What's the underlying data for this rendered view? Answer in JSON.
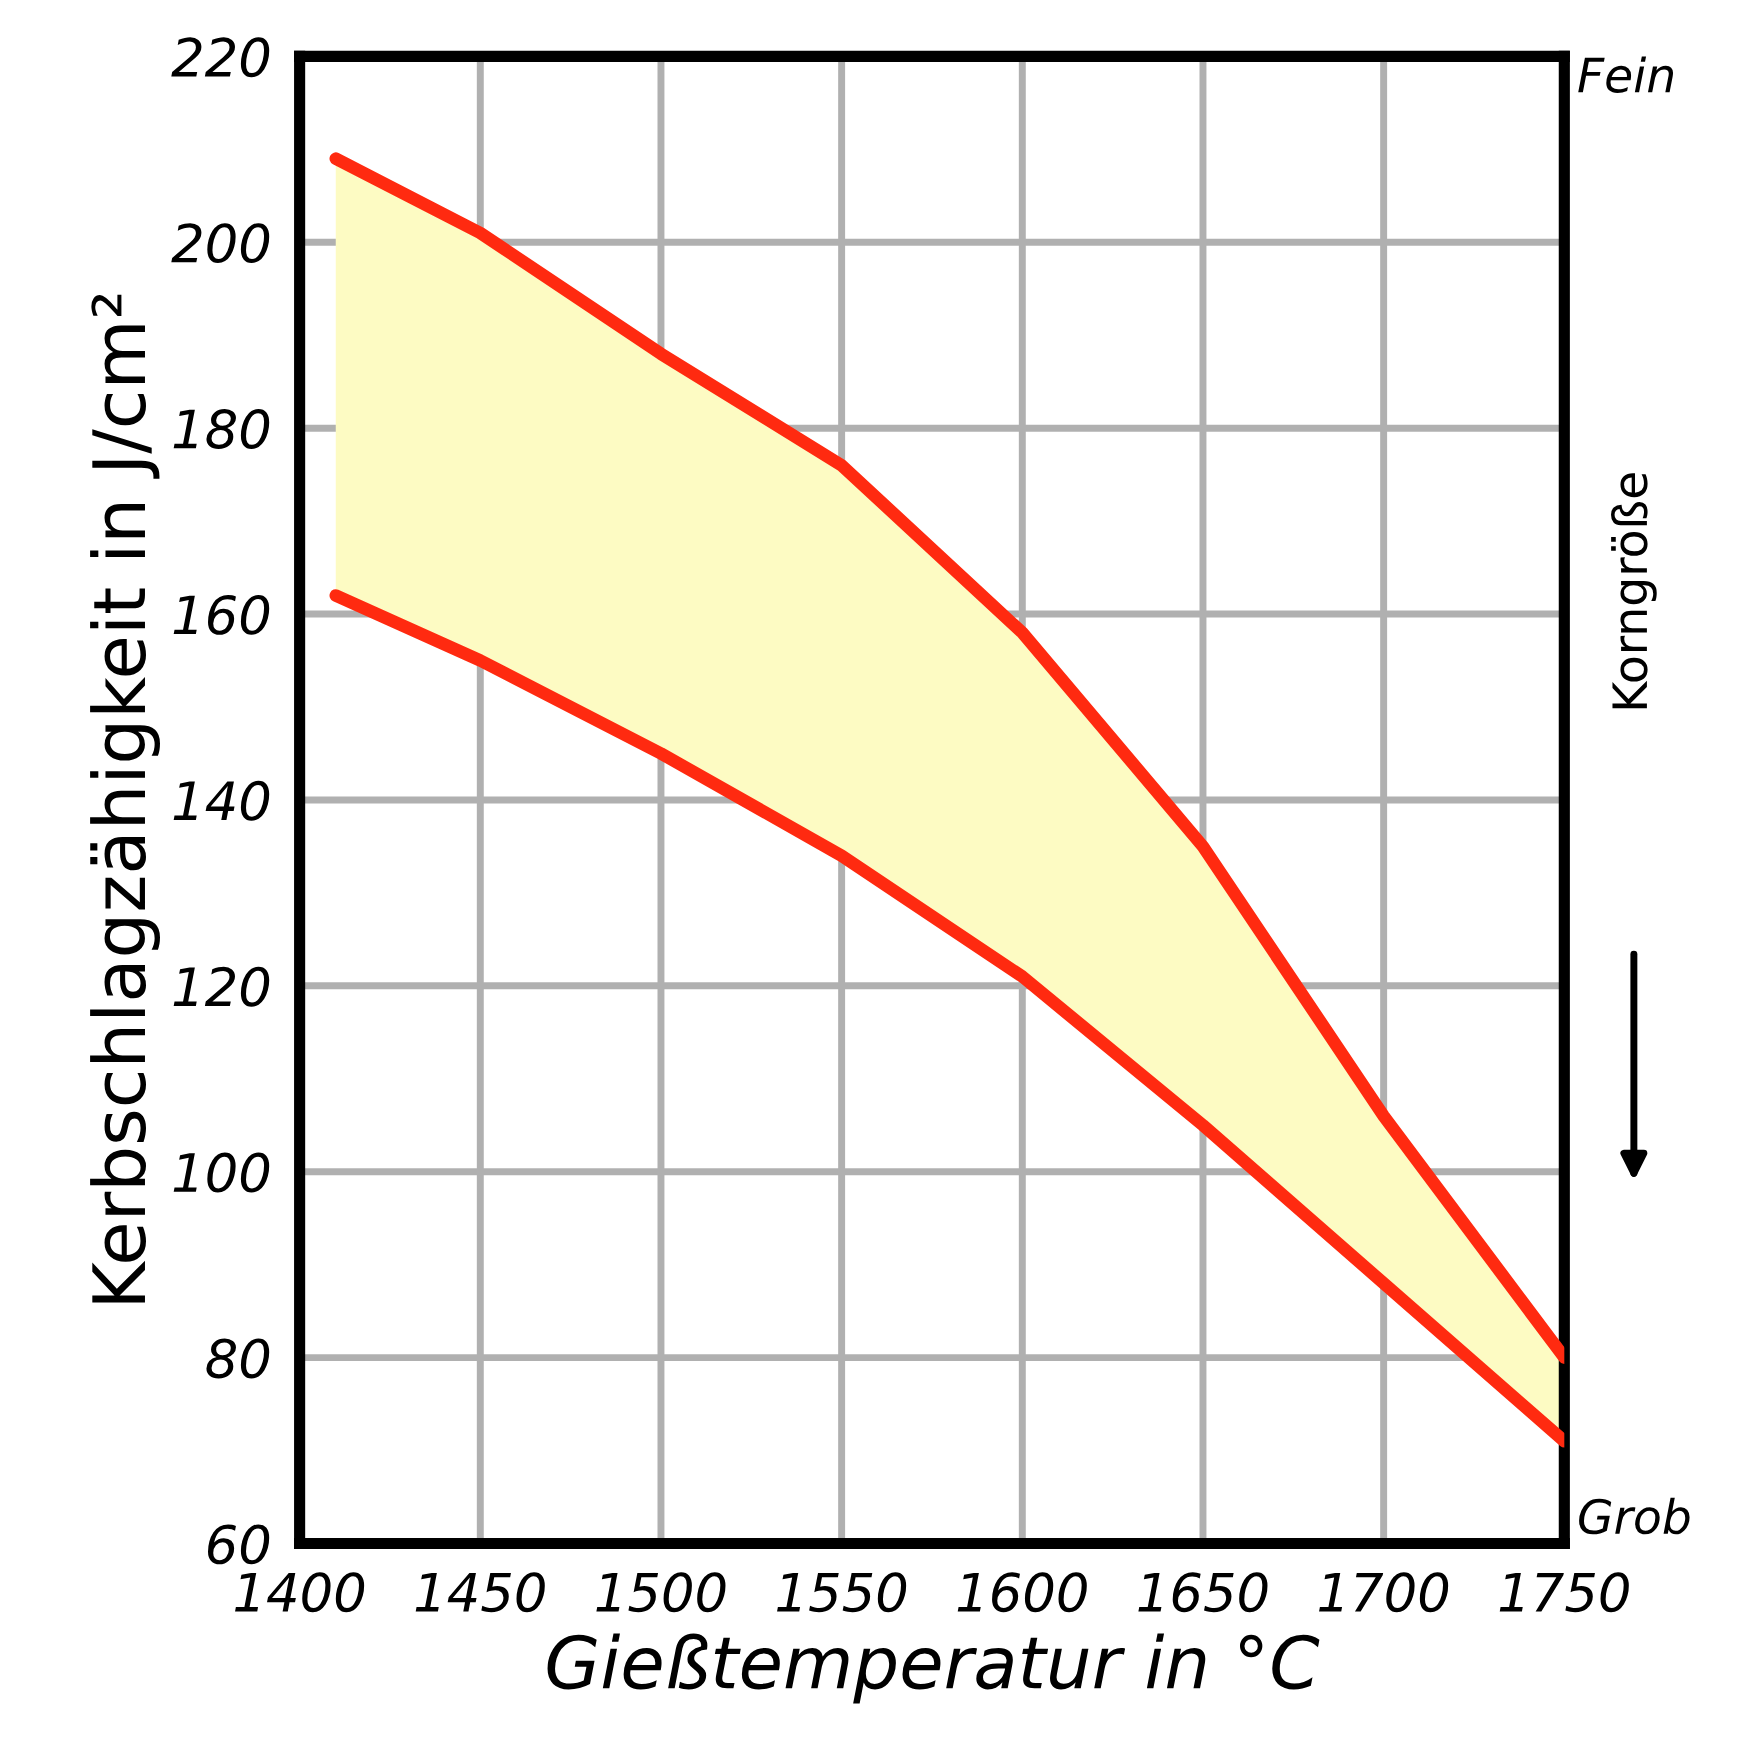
{
  "chart_data": {
    "type": "line",
    "xlabel": "Gießtemperatur in °C",
    "ylabel": "Kerbschlagzähigkeit in J/cm²",
    "xlim": [
      1400,
      1750
    ],
    "xticks": [
      1400,
      1450,
      1500,
      1550,
      1600,
      1650,
      1700,
      1750
    ],
    "ylim": [
      60,
      220
    ],
    "yticks": [
      60,
      80,
      100,
      120,
      140,
      160,
      180,
      200,
      220
    ],
    "grid": true,
    "line_style": "solid",
    "marker": "none",
    "series": [
      {
        "type": "line",
        "color": "#ff2a10",
        "x": [
          1410,
          1450,
          1500,
          1550,
          1600,
          1650,
          1700,
          1750
        ],
        "values": [
          209,
          201,
          188,
          176,
          158,
          135,
          106,
          80
        ],
        "lower": [
          162,
          155,
          145,
          134,
          121,
          105,
          88,
          71
        ],
        "upper": [
          209,
          201,
          188,
          176,
          158,
          135,
          106,
          80
        ]
      },
      {
        "type": "line",
        "color": "#ff2a10",
        "x": [
          1410,
          1450,
          1500,
          1550,
          1600,
          1650,
          1700,
          1750
        ],
        "values": [
          162,
          155,
          145,
          134,
          121,
          105,
          88,
          71
        ]
      }
    ],
    "annotations": [
      "Fein",
      "Grob",
      "Korngröße"
    ]
  }
}
